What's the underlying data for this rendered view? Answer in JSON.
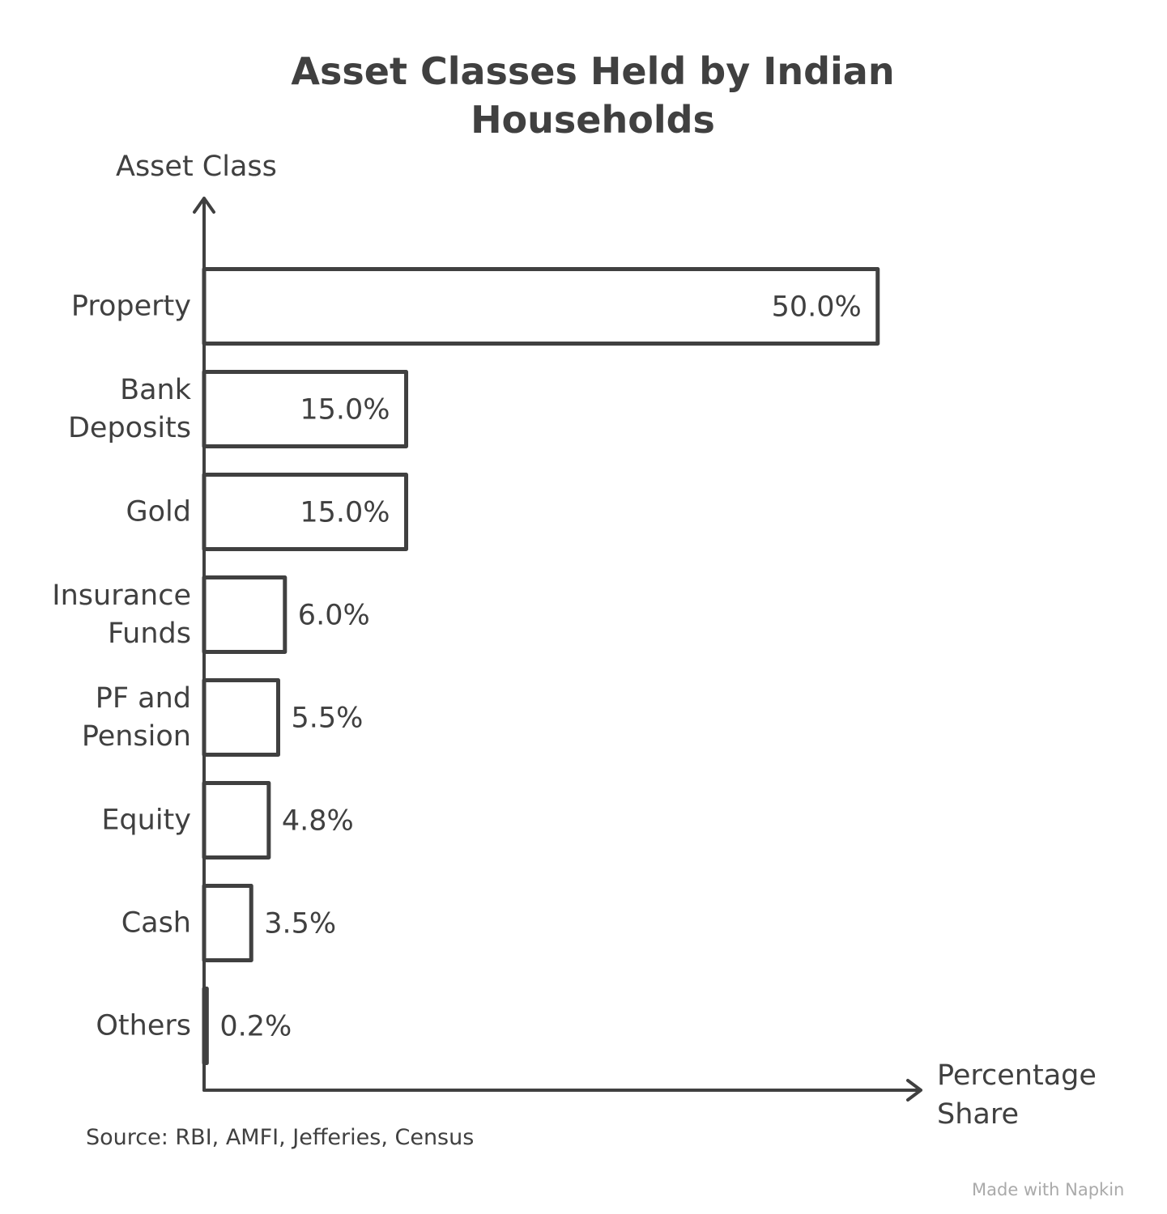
{
  "chart_data": {
    "type": "bar",
    "orientation": "horizontal",
    "title": "Asset Classes Held by Indian Households",
    "y_label": "Asset Class",
    "x_label": "Percentage Share",
    "categories": [
      "Property",
      "Bank Deposits",
      "Gold",
      "Insurance Funds",
      "PF and Pension",
      "Equity",
      "Cash",
      "Others"
    ],
    "values": [
      50,
      15,
      15,
      6,
      5.5,
      4.8,
      3.5,
      0.2
    ],
    "value_labels": [
      "50.0%",
      "15.0%",
      "15.0%",
      "6.0%",
      "5.5%",
      "4.8%",
      "3.5%",
      "0.2%"
    ],
    "xlim": [
      0,
      53.2
    ],
    "color": "#404040",
    "source": "Source: RBI, AMFI, Jefferies, Census",
    "watermark": "Made with Napkin"
  }
}
